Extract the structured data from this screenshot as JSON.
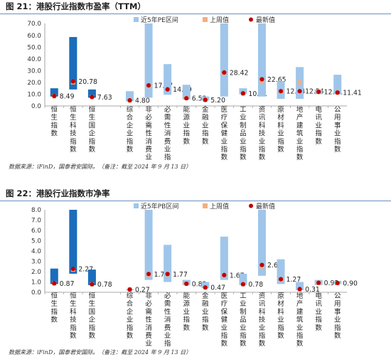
{
  "colors": {
    "dark_bar": "#1b6dbb",
    "range_bar": "#9fc6ea",
    "last_week": "#f4ae7e",
    "latest": "#c00000",
    "axis": "#8c8c8c",
    "title_rule": "#6b8fc2"
  },
  "figures": [
    {
      "title": "图 21：港股行业指数市盈率（TTM）",
      "source": "数据来源：iFinD，国泰君安国际。（备注：截至 2024 年 9 月 13 日）",
      "chart_data": {
        "type": "bar",
        "ylim": [
          0,
          70
        ],
        "yticks": [
          "0.0",
          "10.0",
          "20.0",
          "30.0",
          "40.0",
          "50.0",
          "60.0",
          "70.0"
        ],
        "legend": {
          "range": "近5年PE区间",
          "last_week": "上周值",
          "latest": "最新值"
        },
        "categories": [
          "恒生指数",
          "恒生科技指数",
          "恒生国企指数",
          "综合企业指数",
          "非必需性消费业指数",
          "必需性消费业指数",
          "能源业指数",
          "金融业指数",
          "医疗保健业指数",
          "工业制品业指数",
          "资讯科技业指数",
          "原材料业指数",
          "地产建筑业指数",
          "电讯业指数",
          "公用事业指数"
        ],
        "gap_after": 3,
        "dark_indices": [
          0,
          1,
          2
        ],
        "range_low": [
          8.0,
          14.0,
          7.0,
          4.0,
          7.0,
          9.5,
          5.5,
          4.5,
          8.0,
          10.0,
          8.0,
          6.0,
          6.0,
          10.0,
          10.0
        ],
        "range_high": [
          15.0,
          58.5,
          14.0,
          12.5,
          70.0,
          35.5,
          18.0,
          8.0,
          70.0,
          15.0,
          70.0,
          21.0,
          33.0,
          14.0,
          26.5
        ],
        "last_week": [
          8.2,
          20.0,
          7.5,
          4.6,
          17.0,
          14.0,
          6.8,
          5.1,
          28.0,
          10.6,
          21.0,
          12.5,
          20.0,
          12.0,
          11.3
        ],
        "latest": [
          8.49,
          20.78,
          7.63,
          4.8,
          17.47,
          14.09,
          6.53,
          5.2,
          28.42,
          10.71,
          22.65,
          12.54,
          12.54,
          12.01,
          11.41
        ],
        "latest_labels": [
          "8.49",
          "20.78",
          "7.63",
          "4.80",
          "17.47",
          "14.09",
          "6.53",
          "5.20",
          "28.42",
          "10.71",
          "22.65",
          "12.54",
          "12.54",
          "12.01",
          "11.41"
        ]
      }
    },
    {
      "title": "图 22：港股行业指数市净率",
      "source": "数据来源：iFinD，国泰君安国际。（备注：截至 2024 年 9 月 13 日）",
      "chart_data": {
        "type": "bar",
        "ylim": [
          0,
          8
        ],
        "yticks": [
          "0.0",
          "1.0",
          "2.0",
          "3.0",
          "4.0",
          "5.0",
          "6.0",
          "7.0",
          "8.0"
        ],
        "legend": {
          "range": "近5年PB区间",
          "last_week": "上周值",
          "latest": "最新值"
        },
        "categories": [
          "恒生指数",
          "恒生科技指数",
          "恒生国企指数",
          "综合企业指数",
          "非必需性消费业指数",
          "必需性消费业指数",
          "能源业指数",
          "金融业指数",
          "医疗保健业指数",
          "工业制品业指数",
          "资讯科技业指数",
          "原材料业指数",
          "地产建筑业指数",
          "电讯业指数",
          "公用事业指数"
        ],
        "gap_after": 3,
        "dark_indices": [
          0,
          1,
          2
        ],
        "range_low": [
          0.8,
          1.8,
          0.7,
          0.2,
          1.2,
          1.0,
          0.7,
          0.4,
          1.2,
          0.7,
          1.6,
          0.8,
          0.2,
          0.7,
          0.8
        ],
        "range_high": [
          2.3,
          8.0,
          2.2,
          0.3,
          8.0,
          4.6,
          1.2,
          1.0,
          5.4,
          1.8,
          8.0,
          3.2,
          1.0,
          1.2,
          1.1
        ],
        "last_week": [
          0.86,
          2.2,
          0.77,
          0.27,
          1.7,
          1.75,
          0.82,
          0.47,
          1.6,
          0.78,
          2.5,
          1.25,
          0.3,
          0.9,
          0.89
        ],
        "latest": [
          0.87,
          2.27,
          0.78,
          0.27,
          1.77,
          1.77,
          0.83,
          0.47,
          1.67,
          0.78,
          2.65,
          1.27,
          0.31,
          0.92,
          0.9
        ],
        "latest_labels": [
          "0.87",
          "2.27",
          "0.78",
          "0.27",
          "1.77",
          "1.77",
          "0.83",
          "0.47",
          "1.67",
          "0.78",
          "2.65",
          "1.27",
          "0.31",
          "0.92",
          "0.90"
        ]
      }
    }
  ]
}
